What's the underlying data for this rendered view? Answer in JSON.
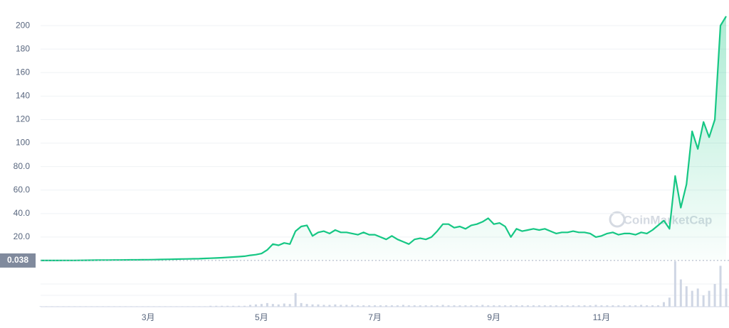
{
  "chart_data": {
    "type": "line",
    "watermark": "CoinMarketCap",
    "categories": [
      null,
      null,
      null,
      null,
      null,
      null,
      null,
      null,
      null,
      null,
      null,
      null,
      null,
      null,
      null,
      null,
      null,
      null,
      null,
      "3月",
      null,
      null,
      null,
      null,
      null,
      null,
      null,
      null,
      null,
      null,
      null,
      null,
      null,
      null,
      null,
      null,
      null,
      null,
      null,
      "5月",
      null,
      null,
      null,
      null,
      null,
      null,
      null,
      null,
      null,
      null,
      null,
      null,
      null,
      null,
      null,
      null,
      null,
      null,
      null,
      "7月",
      null,
      null,
      null,
      null,
      null,
      null,
      null,
      null,
      null,
      null,
      null,
      null,
      null,
      null,
      null,
      null,
      null,
      null,
      null,
      null,
      "9月",
      null,
      null,
      null,
      null,
      null,
      null,
      null,
      null,
      null,
      null,
      null,
      null,
      null,
      null,
      null,
      null,
      null,
      null,
      "11月",
      null,
      null,
      null,
      null,
      null,
      null,
      null,
      null,
      null,
      null,
      null,
      null,
      null,
      null,
      null,
      null,
      null,
      null,
      null,
      null,
      null,
      null
    ],
    "series": [
      {
        "color": "#16c784",
        "values": [
          0.04,
          0.05,
          0.06,
          0.08,
          0.1,
          0.12,
          0.15,
          0.2,
          0.25,
          0.3,
          0.35,
          0.4,
          0.45,
          0.5,
          0.5,
          0.55,
          0.6,
          0.6,
          0.65,
          0.7,
          0.8,
          0.9,
          1.0,
          1.1,
          1.2,
          1.3,
          1.4,
          1.5,
          1.6,
          1.8,
          2.0,
          2.2,
          2.4,
          2.7,
          3.0,
          3.3,
          3.7,
          4.5,
          5,
          6,
          9,
          14,
          13,
          15,
          14,
          25,
          29,
          30,
          21,
          24,
          25,
          23,
          26,
          24,
          24,
          23,
          22,
          24,
          22,
          22,
          20,
          18,
          21,
          18,
          16,
          14,
          18,
          19,
          18,
          20,
          25,
          31,
          31,
          28,
          29,
          27,
          30,
          31,
          33,
          36,
          31,
          32,
          29,
          20,
          27,
          25,
          26,
          27,
          26,
          27,
          25,
          23,
          24,
          24,
          25,
          24,
          24,
          23,
          20,
          21,
          23,
          24,
          22,
          23,
          23,
          22,
          24,
          23,
          26,
          30,
          34,
          27,
          72,
          45,
          65,
          110,
          95,
          118,
          105,
          120,
          200,
          208
        ]
      }
    ],
    "volume": [
      1,
      1,
      1,
      1,
      1,
      1,
      1,
      1,
      1,
      1,
      1,
      1,
      1,
      1,
      1,
      1,
      1,
      1,
      1,
      1,
      1,
      1,
      1,
      1,
      1,
      1,
      1,
      1,
      1,
      1,
      2,
      2,
      2,
      2,
      2,
      2,
      2,
      4,
      5,
      6,
      8,
      6,
      5,
      7,
      6,
      30,
      8,
      6,
      5,
      5,
      4,
      4,
      5,
      4,
      4,
      4,
      3,
      3,
      3,
      3,
      3,
      3,
      3,
      3,
      4,
      3,
      3,
      3,
      3,
      3,
      3,
      4,
      3,
      3,
      3,
      3,
      3,
      3,
      4,
      3,
      3,
      3,
      3,
      3,
      3,
      3,
      3,
      3,
      3,
      3,
      3,
      3,
      3,
      3,
      3,
      3,
      3,
      3,
      4,
      3,
      3,
      3,
      3,
      3,
      3,
      3,
      4,
      3,
      3,
      3,
      10,
      20,
      100,
      60,
      45,
      35,
      40,
      25,
      35,
      50,
      90,
      40
    ],
    "volume_color": "#cfd6e4",
    "ylim": [
      0,
      220
    ],
    "yticks": [
      {
        "value": 20,
        "label": "20.0"
      },
      {
        "value": 40,
        "label": "40.0"
      },
      {
        "value": 60,
        "label": "60.0"
      },
      {
        "value": 80,
        "label": "80.0"
      },
      100,
      120,
      140,
      160,
      180,
      200
    ],
    "reference": {
      "value": 0.038,
      "label": "0.038"
    },
    "grid": true
  }
}
